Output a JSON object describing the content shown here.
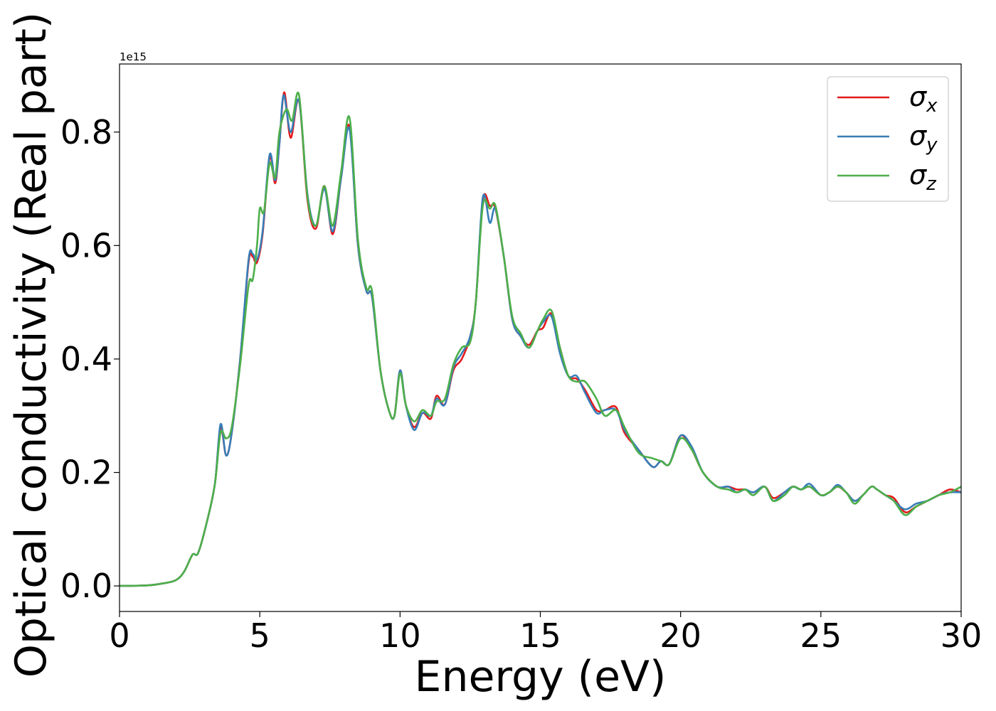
{
  "chart_data": {
    "type": "line",
    "xlabel": "Energy (eV)",
    "ylabel": "Optical conductivity (Real part)",
    "offset_text": "1e15",
    "xlim": [
      0,
      30
    ],
    "ylim": [
      -0.045,
      0.92
    ],
    "xticks": [
      0,
      5,
      10,
      15,
      20,
      25,
      30
    ],
    "xtick_labels": [
      "0",
      "5",
      "10",
      "15",
      "20",
      "25",
      "30"
    ],
    "yticks": [
      0.0,
      0.2,
      0.4,
      0.6,
      0.8
    ],
    "ytick_labels": [
      "0.0",
      "0.2",
      "0.4",
      "0.6",
      "0.8"
    ],
    "grid": false,
    "legend_position": "upper right",
    "series": [
      {
        "name": "σx",
        "legend_base": "σ",
        "legend_sub": "x",
        "color": "#e41a1c",
        "x": [
          0,
          1,
          1.5,
          2,
          2.3,
          2.6,
          2.8,
          3.1,
          3.4,
          3.6,
          3.8,
          4.0,
          4.3,
          4.6,
          4.75,
          4.9,
          5.1,
          5.35,
          5.55,
          5.7,
          5.87,
          6.1,
          6.4,
          6.7,
          7.0,
          7.3,
          7.6,
          7.9,
          8.2,
          8.5,
          8.8,
          9.0,
          9.3,
          9.6,
          9.8,
          10.0,
          10.2,
          10.5,
          10.8,
          11.1,
          11.3,
          11.6,
          11.9,
          12.2,
          12.5,
          12.7,
          12.95,
          13.2,
          13.4,
          13.7,
          14.0,
          14.3,
          14.6,
          14.9,
          15.1,
          15.4,
          15.7,
          16.0,
          16.3,
          16.6,
          17.0,
          17.3,
          17.7,
          18.0,
          18.5,
          19.0,
          19.3,
          19.6,
          20.0,
          20.4,
          20.8,
          21.3,
          21.7,
          22.0,
          22.3,
          22.6,
          23.0,
          23.3,
          23.7,
          24.0,
          24.3,
          24.6,
          25.0,
          25.3,
          25.6,
          25.9,
          26.2,
          26.5,
          26.8,
          27.0,
          27.3,
          27.6,
          28.0,
          28.4,
          28.8,
          29.2,
          29.6,
          30
        ],
        "values": [
          0,
          0.001,
          0.004,
          0.01,
          0.025,
          0.055,
          0.058,
          0.11,
          0.18,
          0.28,
          0.23,
          0.27,
          0.4,
          0.57,
          0.58,
          0.57,
          0.62,
          0.755,
          0.71,
          0.78,
          0.87,
          0.79,
          0.855,
          0.68,
          0.63,
          0.705,
          0.62,
          0.72,
          0.81,
          0.6,
          0.52,
          0.51,
          0.38,
          0.31,
          0.3,
          0.38,
          0.32,
          0.28,
          0.305,
          0.295,
          0.335,
          0.32,
          0.38,
          0.4,
          0.44,
          0.5,
          0.68,
          0.67,
          0.665,
          0.58,
          0.47,
          0.44,
          0.425,
          0.45,
          0.455,
          0.48,
          0.42,
          0.37,
          0.365,
          0.345,
          0.31,
          0.31,
          0.315,
          0.27,
          0.24,
          0.21,
          0.22,
          0.215,
          0.265,
          0.24,
          0.2,
          0.175,
          0.175,
          0.17,
          0.17,
          0.165,
          0.175,
          0.155,
          0.165,
          0.175,
          0.17,
          0.175,
          0.16,
          0.165,
          0.175,
          0.165,
          0.15,
          0.16,
          0.175,
          0.17,
          0.16,
          0.155,
          0.13,
          0.14,
          0.15,
          0.16,
          0.17,
          0.165
        ]
      },
      {
        "name": "σy",
        "legend_base": "σ",
        "legend_sub": "y",
        "color": "#377eb8",
        "x": [
          0,
          1,
          1.5,
          2,
          2.3,
          2.6,
          2.8,
          3.1,
          3.4,
          3.6,
          3.8,
          4.0,
          4.3,
          4.6,
          4.75,
          4.9,
          5.1,
          5.35,
          5.55,
          5.7,
          5.85,
          6.1,
          6.4,
          6.7,
          7.0,
          7.3,
          7.6,
          7.9,
          8.2,
          8.5,
          8.8,
          9.0,
          9.3,
          9.6,
          9.8,
          10.0,
          10.2,
          10.5,
          10.8,
          11.1,
          11.3,
          11.6,
          11.9,
          12.2,
          12.5,
          12.7,
          12.95,
          13.2,
          13.4,
          13.7,
          14.0,
          14.3,
          14.6,
          14.9,
          15.1,
          15.4,
          15.7,
          16.0,
          16.3,
          16.6,
          17.0,
          17.3,
          17.7,
          18.0,
          18.5,
          19.0,
          19.3,
          19.6,
          20.0,
          20.4,
          20.8,
          21.3,
          21.7,
          22.0,
          22.3,
          22.6,
          23.0,
          23.3,
          23.7,
          24.0,
          24.3,
          24.6,
          25.0,
          25.3,
          25.6,
          25.9,
          26.2,
          26.5,
          26.8,
          27.0,
          27.3,
          27.6,
          28.0,
          28.4,
          28.8,
          29.2,
          29.6,
          30
        ],
        "values": [
          0,
          0.001,
          0.004,
          0.01,
          0.025,
          0.055,
          0.058,
          0.11,
          0.18,
          0.285,
          0.23,
          0.27,
          0.4,
          0.575,
          0.585,
          0.575,
          0.625,
          0.76,
          0.715,
          0.78,
          0.865,
          0.8,
          0.855,
          0.69,
          0.635,
          0.7,
          0.625,
          0.72,
          0.805,
          0.6,
          0.52,
          0.51,
          0.38,
          0.31,
          0.3,
          0.38,
          0.32,
          0.275,
          0.305,
          0.3,
          0.33,
          0.32,
          0.385,
          0.41,
          0.44,
          0.5,
          0.685,
          0.64,
          0.665,
          0.58,
          0.47,
          0.44,
          0.42,
          0.45,
          0.465,
          0.475,
          0.41,
          0.37,
          0.37,
          0.34,
          0.305,
          0.31,
          0.31,
          0.275,
          0.24,
          0.21,
          0.22,
          0.215,
          0.265,
          0.245,
          0.2,
          0.175,
          0.175,
          0.165,
          0.17,
          0.165,
          0.175,
          0.15,
          0.165,
          0.175,
          0.17,
          0.18,
          0.16,
          0.165,
          0.178,
          0.165,
          0.15,
          0.16,
          0.175,
          0.17,
          0.16,
          0.15,
          0.135,
          0.145,
          0.15,
          0.16,
          0.165,
          0.165
        ]
      },
      {
        "name": "σz",
        "legend_base": "σ",
        "legend_sub": "z",
        "color": "#4daf4a",
        "x": [
          0,
          1,
          1.5,
          2,
          2.3,
          2.6,
          2.8,
          3.1,
          3.4,
          3.6,
          3.8,
          4.0,
          4.3,
          4.6,
          4.75,
          4.9,
          5.0,
          5.15,
          5.35,
          5.55,
          5.7,
          5.95,
          6.15,
          6.4,
          6.7,
          7.0,
          7.3,
          7.6,
          7.9,
          8.2,
          8.5,
          8.8,
          9.0,
          9.3,
          9.6,
          9.8,
          10.0,
          10.2,
          10.5,
          10.8,
          11.1,
          11.3,
          11.6,
          11.9,
          12.2,
          12.5,
          12.7,
          12.95,
          13.2,
          13.4,
          13.7,
          14.0,
          14.3,
          14.6,
          14.9,
          15.1,
          15.4,
          15.7,
          16.0,
          16.3,
          16.6,
          17.0,
          17.3,
          17.7,
          18.0,
          18.5,
          19.0,
          19.3,
          19.6,
          20.0,
          20.4,
          20.8,
          21.3,
          21.7,
          22.0,
          22.3,
          22.6,
          23.0,
          23.3,
          23.7,
          24.0,
          24.3,
          24.6,
          25.0,
          25.3,
          25.6,
          25.9,
          26.2,
          26.5,
          26.8,
          27.0,
          27.3,
          27.6,
          28.0,
          28.4,
          28.8,
          29.2,
          29.6,
          30
        ],
        "values": [
          0,
          0.001,
          0.004,
          0.01,
          0.025,
          0.055,
          0.058,
          0.11,
          0.18,
          0.27,
          0.26,
          0.28,
          0.39,
          0.53,
          0.54,
          0.6,
          0.665,
          0.66,
          0.745,
          0.72,
          0.8,
          0.84,
          0.82,
          0.865,
          0.685,
          0.635,
          0.705,
          0.635,
          0.73,
          0.825,
          0.61,
          0.525,
          0.52,
          0.38,
          0.31,
          0.3,
          0.375,
          0.32,
          0.29,
          0.31,
          0.3,
          0.325,
          0.33,
          0.39,
          0.42,
          0.43,
          0.5,
          0.67,
          0.665,
          0.67,
          0.58,
          0.475,
          0.445,
          0.42,
          0.45,
          0.47,
          0.485,
          0.42,
          0.37,
          0.36,
          0.36,
          0.33,
          0.3,
          0.31,
          0.28,
          0.235,
          0.225,
          0.22,
          0.215,
          0.26,
          0.24,
          0.2,
          0.175,
          0.17,
          0.165,
          0.17,
          0.16,
          0.175,
          0.15,
          0.16,
          0.175,
          0.17,
          0.175,
          0.16,
          0.165,
          0.175,
          0.165,
          0.145,
          0.16,
          0.175,
          0.17,
          0.16,
          0.15,
          0.125,
          0.14,
          0.15,
          0.16,
          0.165,
          0.175
        ]
      }
    ]
  }
}
